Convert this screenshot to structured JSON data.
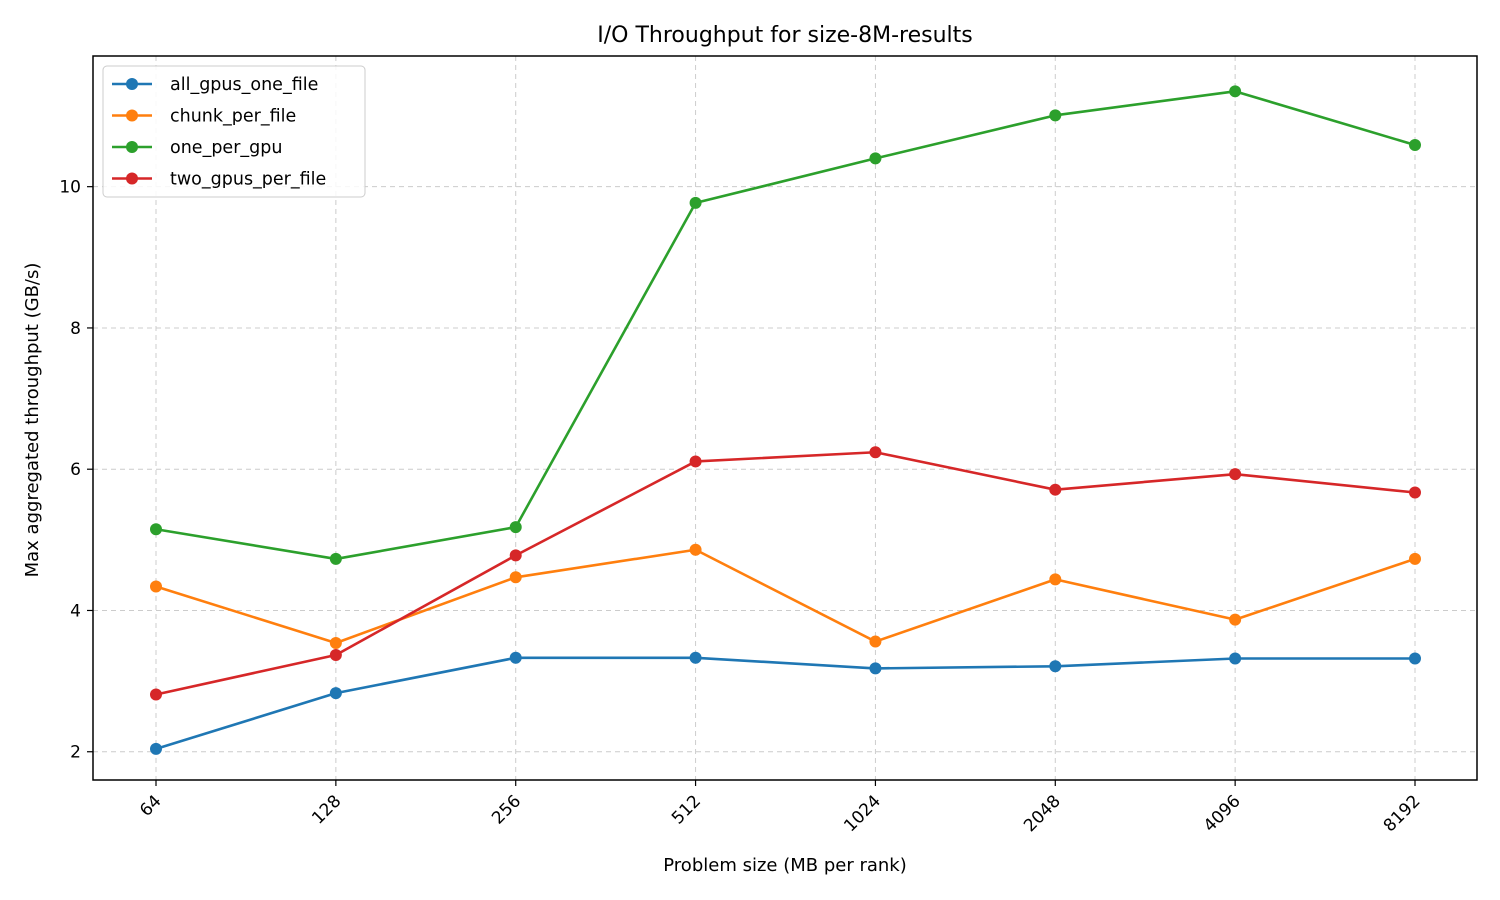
{
  "chart_data": {
    "type": "line",
    "title": "I/O Throughput for size-8M-results",
    "xlabel": "Problem size (MB per rank)",
    "ylabel": "Max aggregated throughput (GB/s)",
    "categories": [
      "64",
      "128",
      "256",
      "512",
      "1024",
      "2048",
      "4096",
      "8192"
    ],
    "ylim": [
      1.6,
      11.85
    ],
    "yticks": [
      "2",
      "4",
      "6",
      "8",
      "10"
    ],
    "grid": true,
    "legend_position": "upper-left",
    "series": [
      {
        "name": "all_gpus_one_file",
        "color": "#1f77b4",
        "values": [
          2.04,
          2.83,
          3.33,
          3.33,
          3.18,
          3.21,
          3.32,
          3.32
        ]
      },
      {
        "name": "chunk_per_file",
        "color": "#ff7f0e",
        "values": [
          4.34,
          3.54,
          4.47,
          4.86,
          3.56,
          4.44,
          3.87,
          4.73
        ]
      },
      {
        "name": "one_per_gpu",
        "color": "#2ca02c",
        "values": [
          5.15,
          4.73,
          5.18,
          9.77,
          10.4,
          11.01,
          11.35,
          10.59
        ]
      },
      {
        "name": "two_gpus_per_file",
        "color": "#d62728",
        "values": [
          2.81,
          3.37,
          4.78,
          6.11,
          6.24,
          5.71,
          5.93,
          5.67
        ]
      }
    ]
  }
}
